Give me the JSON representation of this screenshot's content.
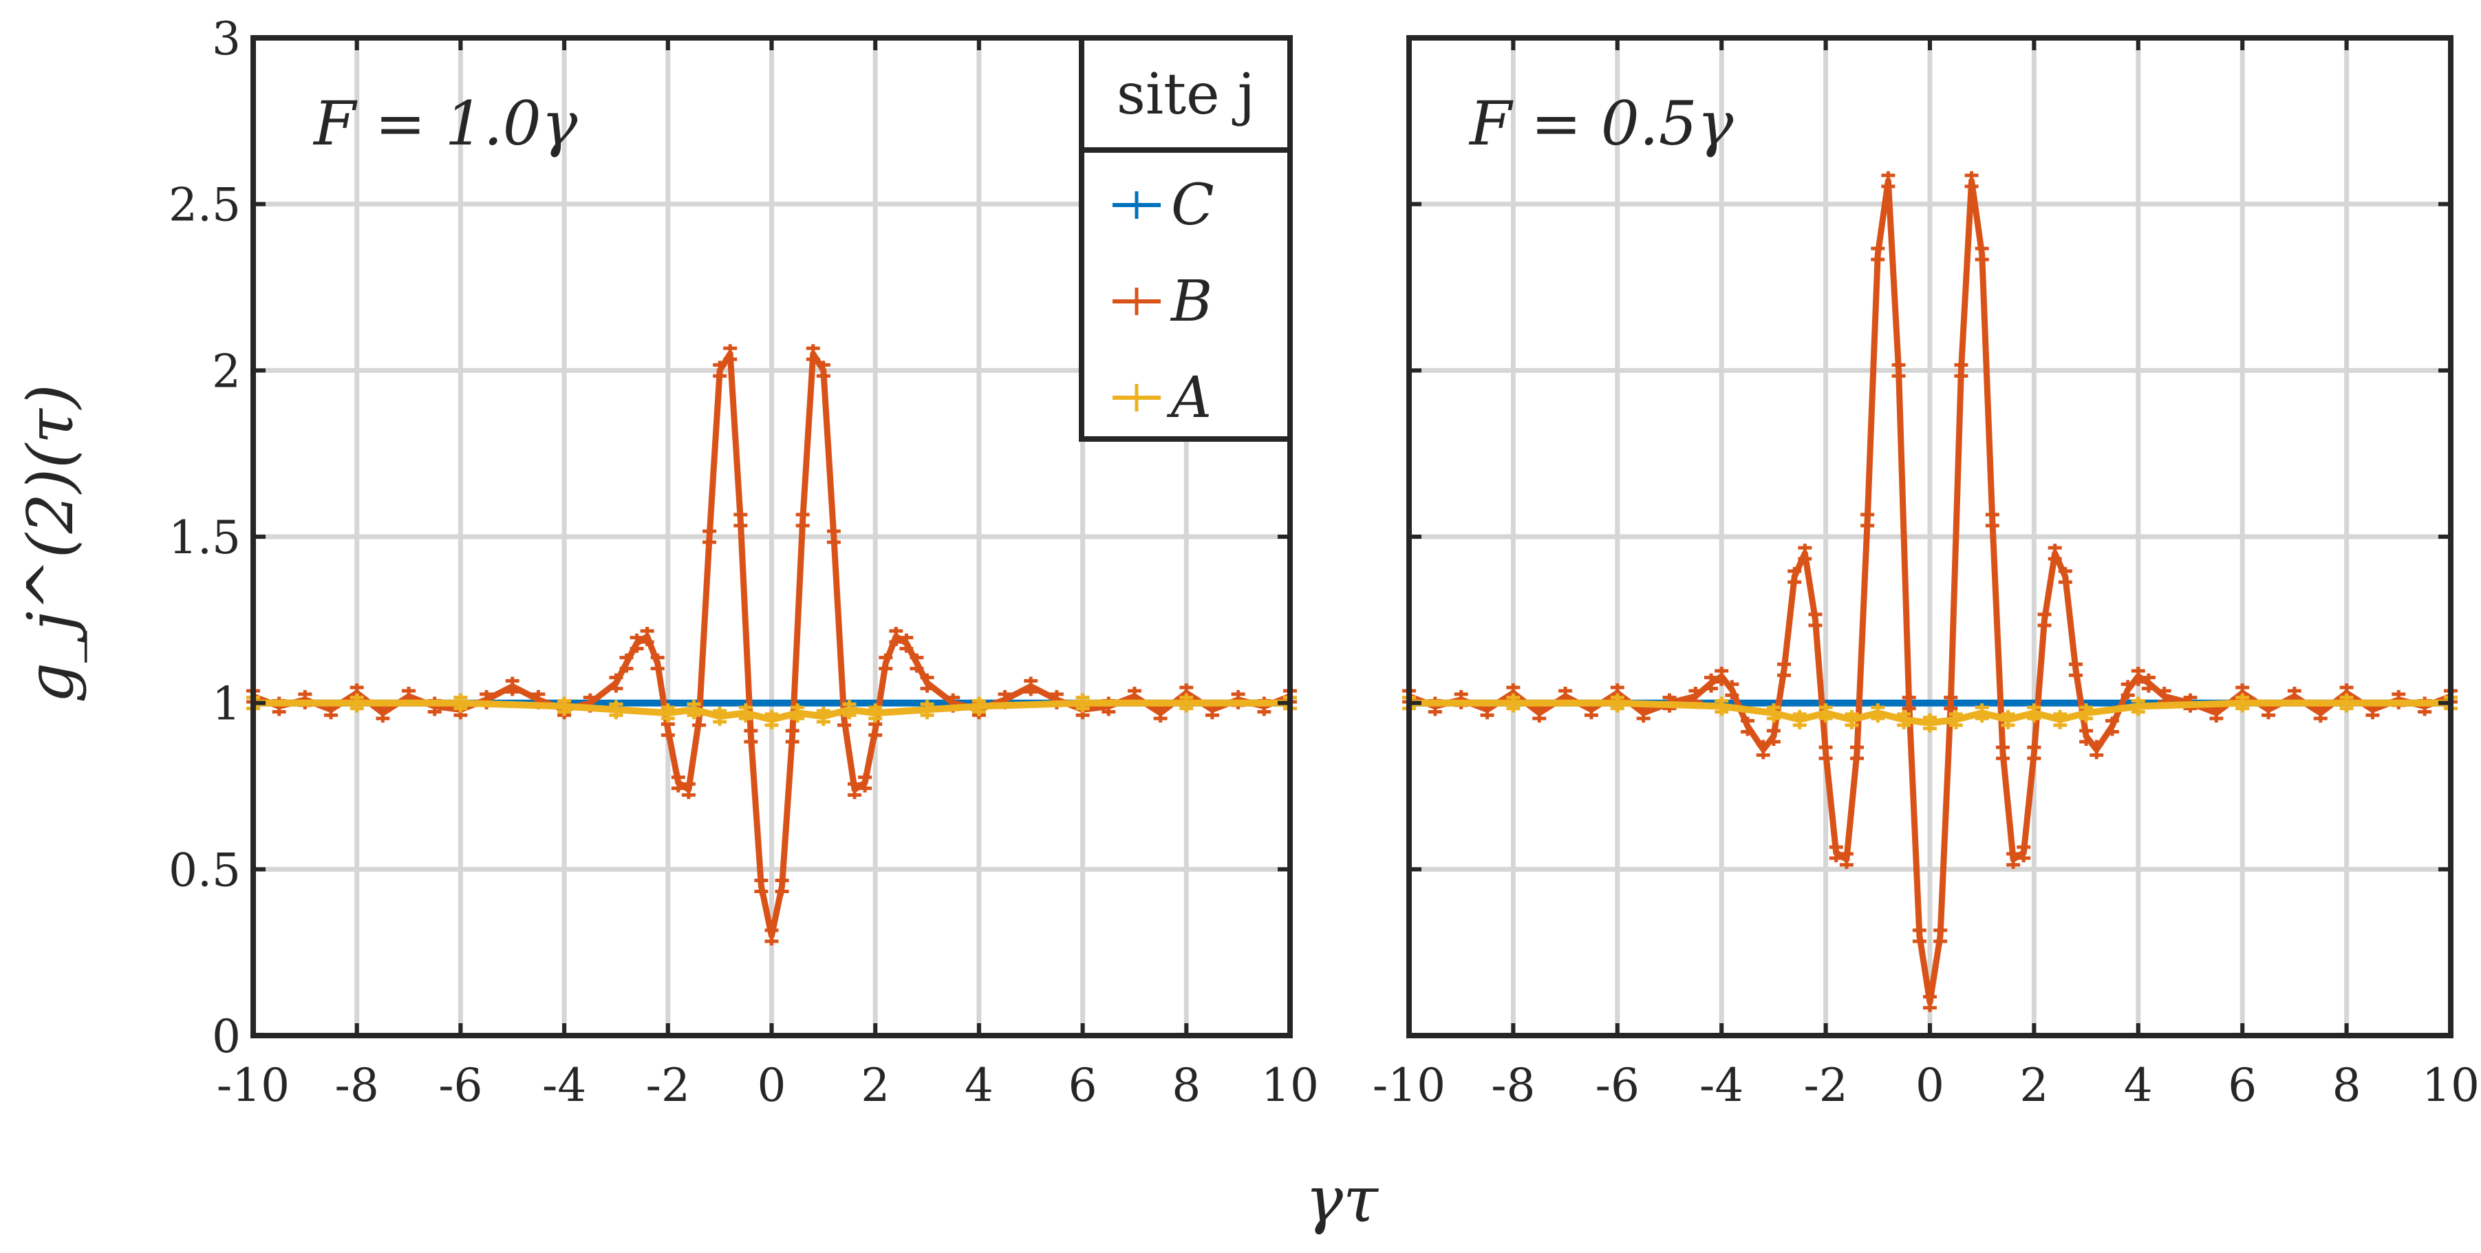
{
  "figure": {
    "ylabel": "g_j^(2)(τ)",
    "xlabel": "γτ",
    "legend_title": "site j"
  },
  "chart_data": [
    {
      "type": "line",
      "annotation": "F = 1.0γ",
      "xlim": [
        -10,
        10
      ],
      "ylim": [
        0,
        3
      ],
      "xticks": [
        -10,
        -8,
        -6,
        -4,
        -2,
        0,
        2,
        4,
        6,
        8,
        10
      ],
      "yticks": [
        0,
        0.5,
        1,
        1.5,
        2,
        2.5,
        3
      ],
      "grid": true,
      "legend_placement": "top-right",
      "legend_title": "site j",
      "series": [
        {
          "name": "C",
          "color": "#0072BD",
          "x": [
            -10,
            10
          ],
          "y": [
            1.0,
            1.0
          ]
        },
        {
          "name": "B",
          "color": "#D95319",
          "x": [
            -10,
            -9.5,
            -9,
            -8.5,
            -8,
            -7.5,
            -7,
            -6.5,
            -6,
            -5.5,
            -5,
            -4.5,
            -4,
            -3.5,
            -3,
            -2.8,
            -2.6,
            -2.4,
            -2.2,
            -2,
            -1.8,
            -1.6,
            -1.4,
            -1.2,
            -1,
            -0.8,
            -0.6,
            -0.4,
            -0.2,
            0,
            0.2,
            0.4,
            0.6,
            0.8,
            1,
            1.2,
            1.4,
            1.6,
            1.8,
            2,
            2.2,
            2.4,
            2.6,
            2.8,
            3,
            3.5,
            4,
            4.5,
            5,
            5.5,
            6,
            6.5,
            7,
            7.5,
            8,
            8.5,
            9,
            9.5,
            10
          ],
          "y": [
            1.02,
            0.99,
            1.01,
            0.98,
            1.03,
            0.97,
            1.02,
            0.99,
            0.98,
            1.01,
            1.05,
            1.01,
            0.98,
            1.0,
            1.06,
            1.12,
            1.18,
            1.2,
            1.12,
            0.92,
            0.76,
            0.74,
            0.95,
            1.5,
            2.0,
            2.05,
            1.55,
            0.9,
            0.45,
            0.3,
            0.45,
            0.9,
            1.55,
            2.05,
            2.0,
            1.5,
            0.95,
            0.74,
            0.76,
            0.92,
            1.12,
            1.2,
            1.18,
            1.12,
            1.06,
            1.0,
            0.98,
            1.01,
            1.05,
            1.01,
            0.98,
            0.99,
            1.02,
            0.97,
            1.03,
            0.98,
            1.01,
            0.99,
            1.02
          ]
        },
        {
          "name": "A",
          "color": "#EDB120",
          "x": [
            -10,
            -8,
            -6,
            -4,
            -3,
            -2,
            -1.5,
            -1,
            -0.5,
            0,
            0.5,
            1,
            1.5,
            2,
            3,
            4,
            6,
            8,
            10
          ],
          "y": [
            1.0,
            1.0,
            1.0,
            0.99,
            0.98,
            0.97,
            0.98,
            0.96,
            0.97,
            0.95,
            0.97,
            0.96,
            0.98,
            0.97,
            0.98,
            0.99,
            1.0,
            1.0,
            1.0
          ]
        }
      ]
    },
    {
      "type": "line",
      "annotation": "F = 0.5γ",
      "xlim": [
        -10,
        10
      ],
      "ylim": [
        0,
        3
      ],
      "xticks": [
        -10,
        -8,
        -6,
        -4,
        -2,
        0,
        2,
        4,
        6,
        8,
        10
      ],
      "yticks": [
        0,
        0.5,
        1,
        1.5,
        2,
        2.5,
        3
      ],
      "grid": true,
      "series": [
        {
          "name": "C",
          "color": "#0072BD",
          "x": [
            -10,
            10
          ],
          "y": [
            1.0,
            1.0
          ]
        },
        {
          "name": "B",
          "color": "#D95319",
          "x": [
            -10,
            -9.5,
            -9,
            -8.5,
            -8,
            -7.5,
            -7,
            -6.5,
            -6,
            -5.5,
            -5,
            -4.5,
            -4.2,
            -4,
            -3.8,
            -3.5,
            -3.2,
            -3,
            -2.8,
            -2.6,
            -2.4,
            -2.2,
            -2,
            -1.8,
            -1.6,
            -1.4,
            -1.2,
            -1,
            -0.8,
            -0.6,
            -0.4,
            -0.2,
            0,
            0.2,
            0.4,
            0.6,
            0.8,
            1,
            1.2,
            1.4,
            1.6,
            1.8,
            2,
            2.2,
            2.4,
            2.6,
            2.8,
            3,
            3.2,
            3.5,
            3.8,
            4,
            4.2,
            4.5,
            5,
            5.5,
            6,
            6.5,
            7,
            7.5,
            8,
            8.5,
            9,
            9.5,
            10
          ],
          "y": [
            1.02,
            0.99,
            1.01,
            0.98,
            1.03,
            0.97,
            1.02,
            0.98,
            1.03,
            0.97,
            1.0,
            1.02,
            1.06,
            1.08,
            1.04,
            0.93,
            0.86,
            0.9,
            1.1,
            1.38,
            1.45,
            1.25,
            0.85,
            0.55,
            0.53,
            0.85,
            1.55,
            2.35,
            2.57,
            2.0,
            1.0,
            0.3,
            0.1,
            0.3,
            1.0,
            2.0,
            2.57,
            2.35,
            1.55,
            0.85,
            0.53,
            0.55,
            0.85,
            1.25,
            1.45,
            1.38,
            1.1,
            0.9,
            0.86,
            0.93,
            1.04,
            1.08,
            1.06,
            1.02,
            1.0,
            0.97,
            1.03,
            0.98,
            1.02,
            0.97,
            1.03,
            0.98,
            1.01,
            0.99,
            1.02
          ]
        },
        {
          "name": "A",
          "color": "#EDB120",
          "x": [
            -10,
            -8,
            -6,
            -4,
            -3,
            -2.5,
            -2,
            -1.5,
            -1,
            -0.5,
            0,
            0.5,
            1,
            1.5,
            2,
            2.5,
            3,
            4,
            6,
            8,
            10
          ],
          "y": [
            1.0,
            1.0,
            1.0,
            0.99,
            0.97,
            0.95,
            0.97,
            0.95,
            0.97,
            0.95,
            0.94,
            0.95,
            0.97,
            0.95,
            0.97,
            0.95,
            0.97,
            0.99,
            1.0,
            1.0,
            1.0
          ]
        }
      ]
    }
  ]
}
